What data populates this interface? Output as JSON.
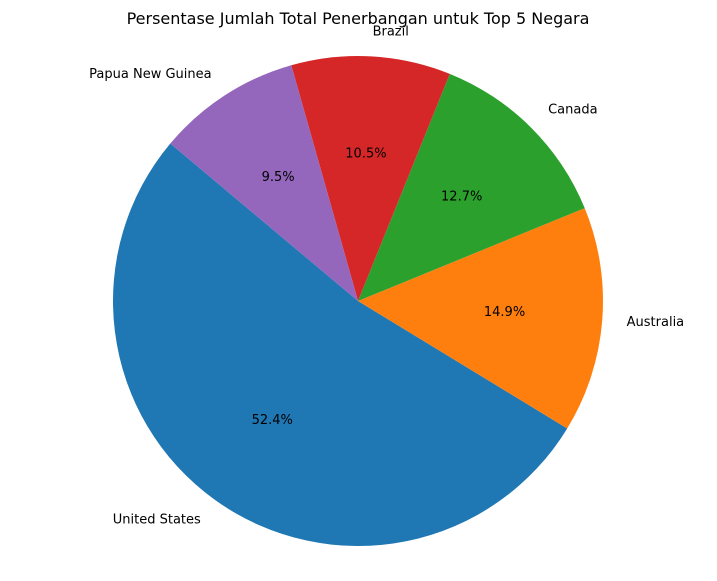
{
  "chart_data": {
    "type": "pie",
    "title": "Persentase Jumlah Total Penerbangan untuk Top 5 Negara",
    "start_angle_deg": 140,
    "direction": "counterclockwise",
    "slices": [
      {
        "label": "United States",
        "value": 52.4,
        "pct_text": "52.4%",
        "color": "#1f77b4"
      },
      {
        "label": "Australia",
        "value": 14.9,
        "pct_text": "14.9%",
        "color": "#ff7f0e"
      },
      {
        "label": "Canada",
        "value": 12.7,
        "pct_text": "12.7%",
        "color": "#2ca02c"
      },
      {
        "label": "Brazil",
        "value": 10.5,
        "pct_text": "10.5%",
        "color": "#d62728"
      },
      {
        "label": "Papua New Guinea",
        "value": 9.5,
        "pct_text": "9.5%",
        "color": "#9467bd"
      }
    ]
  }
}
